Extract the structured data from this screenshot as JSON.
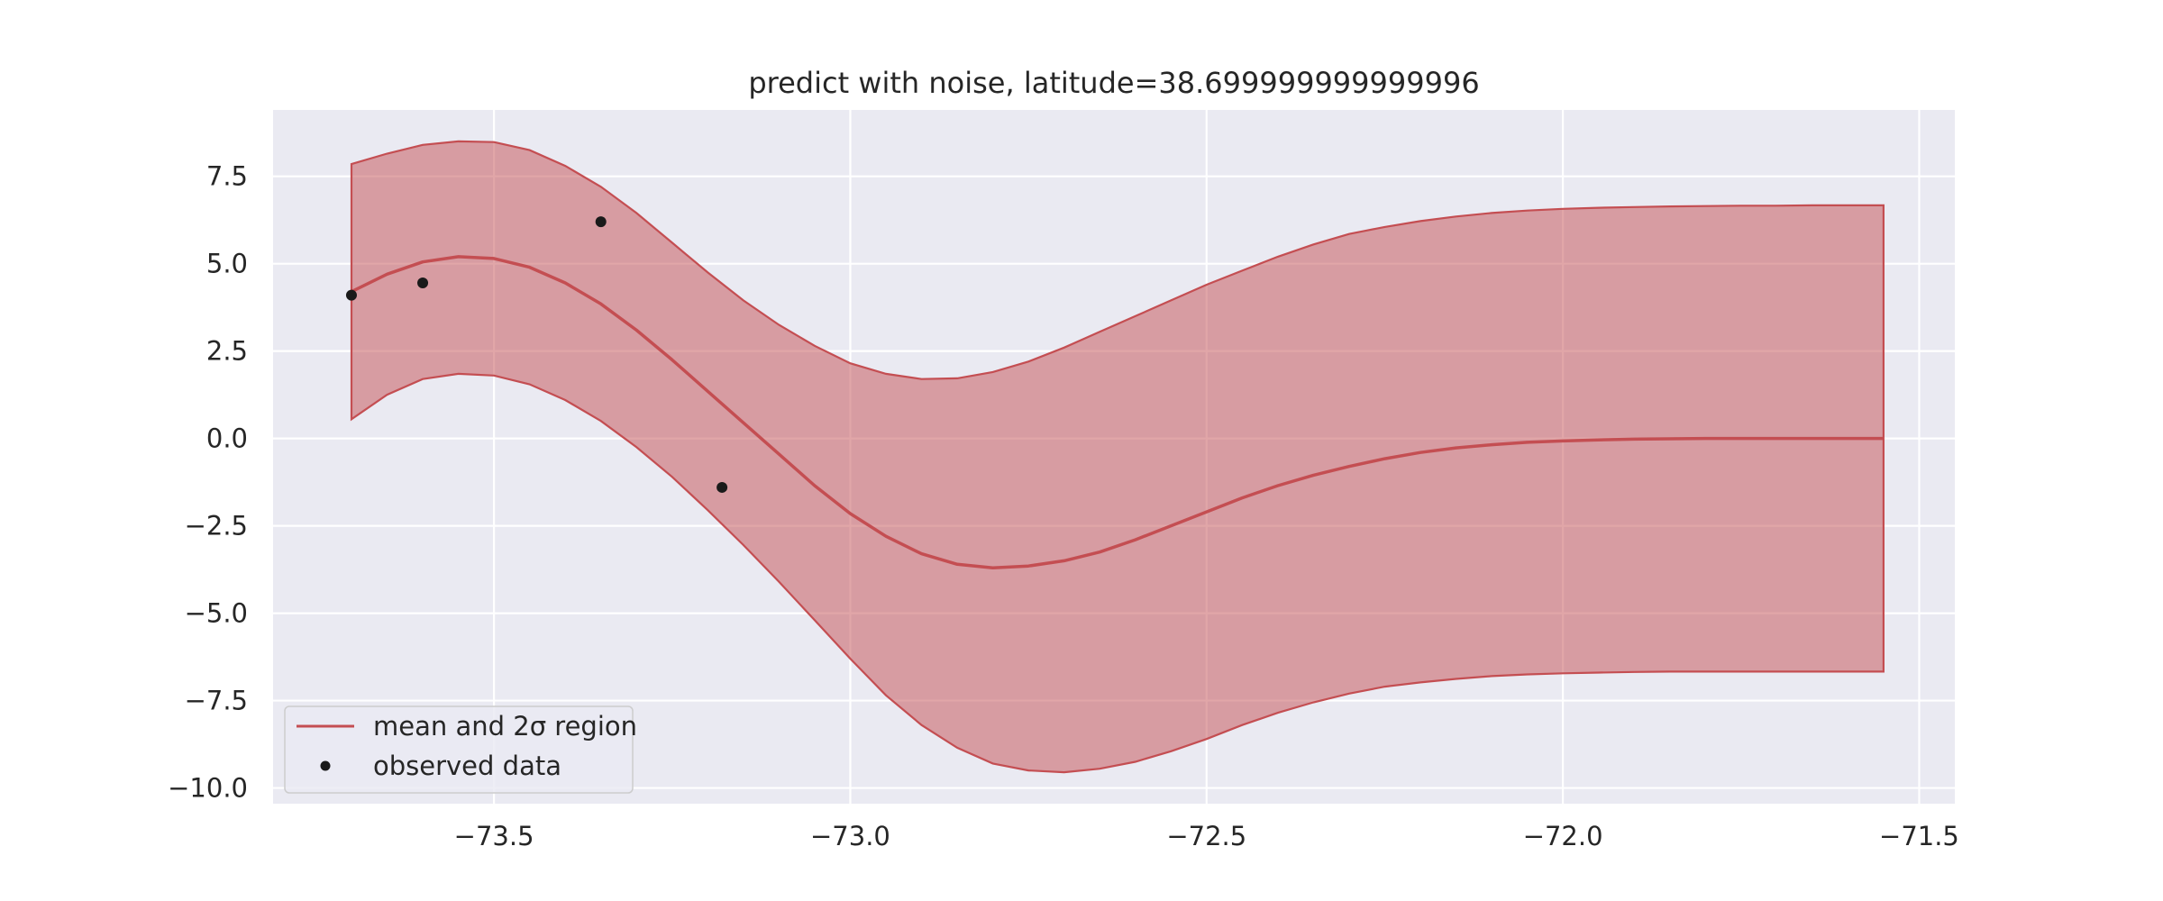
{
  "chart_data": {
    "type": "line",
    "title": "predict with noise, latitude=38.699999999999996",
    "xlabel": "",
    "ylabel": "",
    "xlim": [
      -73.81,
      -71.45
    ],
    "ylim": [
      -10.45,
      9.4
    ],
    "xticks": [
      -73.5,
      -73.0,
      -72.5,
      -72.0,
      -71.5
    ],
    "xtick_labels": [
      "−73.5",
      "−73.0",
      "−72.5",
      "−72.0",
      "−71.5"
    ],
    "yticks": [
      7.5,
      5.0,
      2.5,
      0.0,
      -2.5,
      -5.0,
      -7.5,
      -10.0
    ],
    "ytick_labels": [
      "7.5",
      "5.0",
      "2.5",
      "0.0",
      "−2.5",
      "−5.0",
      "−7.5",
      "−10.0"
    ],
    "grid": true,
    "legend_position": "lower-left",
    "series": [
      {
        "name": "mean and 2σ region",
        "color": "#c44e52",
        "x": [
          -73.7,
          -73.65,
          -73.6,
          -73.55,
          -73.5,
          -73.45,
          -73.4,
          -73.35,
          -73.3,
          -73.25,
          -73.2,
          -73.15,
          -73.1,
          -73.05,
          -73.0,
          -72.95,
          -72.9,
          -72.85,
          -72.8,
          -72.75,
          -72.7,
          -72.65,
          -72.6,
          -72.55,
          -72.5,
          -72.45,
          -72.4,
          -72.35,
          -72.3,
          -72.25,
          -72.2,
          -72.15,
          -72.1,
          -72.05,
          -72.0,
          -71.95,
          -71.9,
          -71.85,
          -71.8,
          -71.75,
          -71.7,
          -71.65,
          -71.6,
          -71.55
        ],
        "mean": [
          4.2,
          4.7,
          5.05,
          5.2,
          5.15,
          4.9,
          4.45,
          3.85,
          3.1,
          2.25,
          1.35,
          0.45,
          -0.45,
          -1.35,
          -2.15,
          -2.8,
          -3.3,
          -3.6,
          -3.7,
          -3.65,
          -3.5,
          -3.25,
          -2.9,
          -2.5,
          -2.1,
          -1.7,
          -1.35,
          -1.05,
          -0.8,
          -0.58,
          -0.4,
          -0.27,
          -0.18,
          -0.11,
          -0.07,
          -0.04,
          -0.02,
          -0.01,
          0.0,
          0.0,
          0.0,
          0.0,
          0.0,
          0.0
        ],
        "upper": [
          7.85,
          8.15,
          8.4,
          8.5,
          8.48,
          8.25,
          7.8,
          7.2,
          6.45,
          5.6,
          4.75,
          3.95,
          3.25,
          2.65,
          2.15,
          1.85,
          1.7,
          1.72,
          1.9,
          2.2,
          2.6,
          3.05,
          3.5,
          3.95,
          4.4,
          4.8,
          5.2,
          5.55,
          5.85,
          6.05,
          6.22,
          6.35,
          6.45,
          6.52,
          6.57,
          6.6,
          6.62,
          6.64,
          6.65,
          6.66,
          6.66,
          6.67,
          6.67,
          6.67
        ],
        "lower": [
          0.55,
          1.25,
          1.7,
          1.85,
          1.8,
          1.55,
          1.1,
          0.5,
          -0.25,
          -1.1,
          -2.05,
          -3.05,
          -4.1,
          -5.2,
          -6.3,
          -7.35,
          -8.2,
          -8.85,
          -9.3,
          -9.5,
          -9.55,
          -9.45,
          -9.25,
          -8.95,
          -8.6,
          -8.2,
          -7.85,
          -7.55,
          -7.3,
          -7.1,
          -6.98,
          -6.88,
          -6.8,
          -6.75,
          -6.72,
          -6.7,
          -6.68,
          -6.67,
          -6.67,
          -6.67,
          -6.67,
          -6.67,
          -6.67,
          -6.67
        ]
      },
      {
        "name": "observed data",
        "type": "scatter",
        "color": "#1a1a1a",
        "x": [
          -73.7,
          -73.6,
          -73.35,
          -73.18
        ],
        "y": [
          4.1,
          4.45,
          6.2,
          -1.4
        ]
      }
    ]
  },
  "colors": {
    "plot_background": "#eaeaf2",
    "grid": "#ffffff",
    "band_fill": "#c44e52",
    "mean_line": "#c44e52",
    "points": "#1a1a1a"
  }
}
